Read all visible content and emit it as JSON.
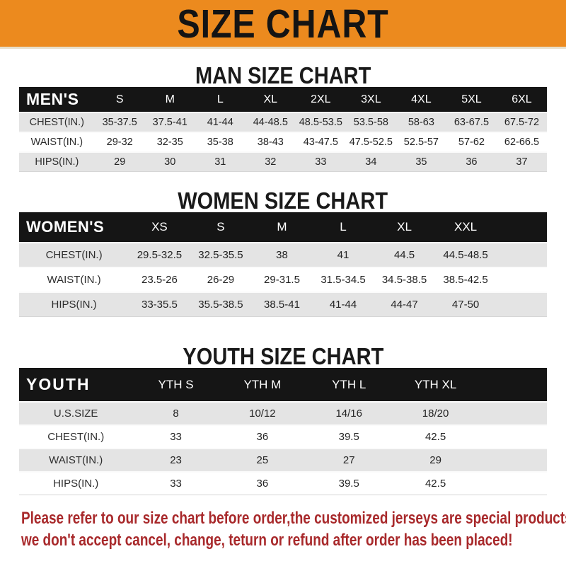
{
  "banner": {
    "title": "SIZE CHART",
    "bg_color": "#EC8A1E",
    "text_color": "#141414"
  },
  "colors": {
    "header_bar": "#151515",
    "row_stripe": "#E4E4E4",
    "notice_red": "#A8292B"
  },
  "sections": [
    {
      "heading": "MAN SIZE CHART",
      "table": {
        "label": "MEN'S",
        "columns": [
          "S",
          "M",
          "L",
          "XL",
          "2XL",
          "3XL",
          "4XL",
          "5XL",
          "6XL"
        ],
        "rows": [
          {
            "label": "CHEST(IN.)",
            "values": [
              "35-37.5",
              "37.5-41",
              "41-44",
              "44-48.5",
              "48.5-53.5",
              "53.5-58",
              "58-63",
              "63-67.5",
              "67.5-72"
            ]
          },
          {
            "label": "WAIST(IN.)",
            "values": [
              "29-32",
              "32-35",
              "35-38",
              "38-43",
              "43-47.5",
              "47.5-52.5",
              "52.5-57",
              "57-62",
              "62-66.5"
            ]
          },
          {
            "label": "HIPS(IN.)",
            "values": [
              "29",
              "30",
              "31",
              "32",
              "33",
              "34",
              "35",
              "36",
              "37"
            ]
          }
        ]
      }
    },
    {
      "heading": "WOMEN SIZE CHART",
      "table": {
        "label": "WOMEN'S",
        "columns": [
          "XS",
          "S",
          "M",
          "L",
          "XL",
          "XXL"
        ],
        "rows": [
          {
            "label": "CHEST(IN.)",
            "values": [
              "29.5-32.5",
              "32.5-35.5",
              "38",
              "41",
              "44.5",
              "44.5-48.5"
            ]
          },
          {
            "label": "WAIST(IN.)",
            "values": [
              "23.5-26",
              "26-29",
              "29-31.5",
              "31.5-34.5",
              "34.5-38.5",
              "38.5-42.5"
            ]
          },
          {
            "label": "HIPS(IN.)",
            "values": [
              "33-35.5",
              "35.5-38.5",
              "38.5-41",
              "41-44",
              "44-47",
              "47-50"
            ]
          }
        ]
      }
    },
    {
      "heading": "YOUTH SIZE CHART",
      "table": {
        "label": "YOUTH",
        "columns": [
          "YTH S",
          "YTH M",
          "YTH L",
          "YTH XL"
        ],
        "rows": [
          {
            "label": "U.S.SIZE",
            "values": [
              "8",
              "10/12",
              "14/16",
              "18/20"
            ]
          },
          {
            "label": "CHEST(IN.)",
            "values": [
              "33",
              "36",
              "39.5",
              "42.5"
            ]
          },
          {
            "label": "WAIST(IN.)",
            "values": [
              "23",
              "25",
              "27",
              "29"
            ]
          },
          {
            "label": "HIPS(IN.)",
            "values": [
              "33",
              "36",
              "39.5",
              "42.5"
            ]
          }
        ]
      }
    }
  ],
  "footer": {
    "line1": "Please refer to our size chart before order,the customized jerseys are special products,",
    "line2": "we don't accept cancel, change, teturn or refund after order has been placed!"
  }
}
